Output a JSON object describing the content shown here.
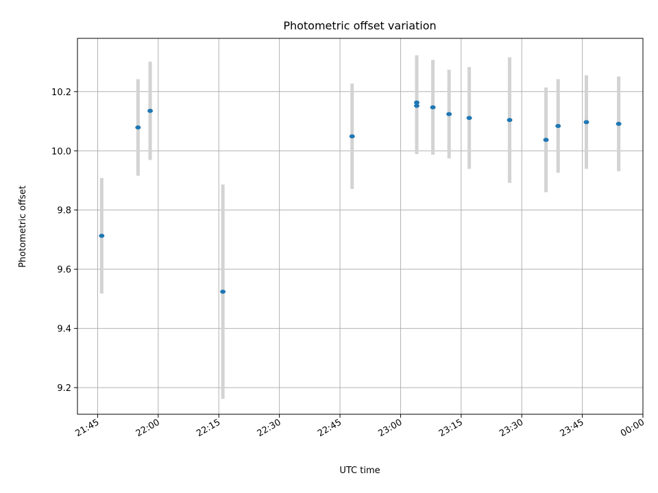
{
  "chart_data": {
    "type": "scatter",
    "title": "Photometric offset variation",
    "xlabel": "UTC time",
    "ylabel": "Photometric offset",
    "xlim": [
      "21:40",
      "00:00"
    ],
    "ylim": [
      9.11,
      10.38
    ],
    "x_ticks": [
      "21:45",
      "22:00",
      "22:15",
      "22:30",
      "22:45",
      "23:00",
      "23:15",
      "23:30",
      "23:45",
      "00:00"
    ],
    "y_ticks": [
      "9.2",
      "9.4",
      "9.6",
      "9.8",
      "10.0",
      "10.2"
    ],
    "grid": true,
    "marker_color": "#1f77b4",
    "errorbar_color": "#d3d3d3",
    "points": [
      {
        "x": "21:46",
        "y": 9.713,
        "err": 0.195
      },
      {
        "x": "21:55",
        "y": 10.079,
        "err": 0.163
      },
      {
        "x": "21:58",
        "y": 10.135,
        "err": 0.166
      },
      {
        "x": "22:16",
        "y": 9.524,
        "err": 0.362
      },
      {
        "x": "22:48",
        "y": 10.049,
        "err": 0.178
      },
      {
        "x": "23:04",
        "y": 10.163,
        "err": 0.16
      },
      {
        "x": "23:04",
        "y": 10.152,
        "err": 0.163
      },
      {
        "x": "23:08",
        "y": 10.147,
        "err": 0.16
      },
      {
        "x": "23:12",
        "y": 10.124,
        "err": 0.15
      },
      {
        "x": "23:17",
        "y": 10.111,
        "err": 0.172
      },
      {
        "x": "23:27",
        "y": 10.104,
        "err": 0.212
      },
      {
        "x": "23:36",
        "y": 10.037,
        "err": 0.177
      },
      {
        "x": "23:39",
        "y": 10.084,
        "err": 0.158
      },
      {
        "x": "23:46",
        "y": 10.097,
        "err": 0.158
      },
      {
        "x": "23:54",
        "y": 10.091,
        "err": 0.16
      }
    ]
  }
}
